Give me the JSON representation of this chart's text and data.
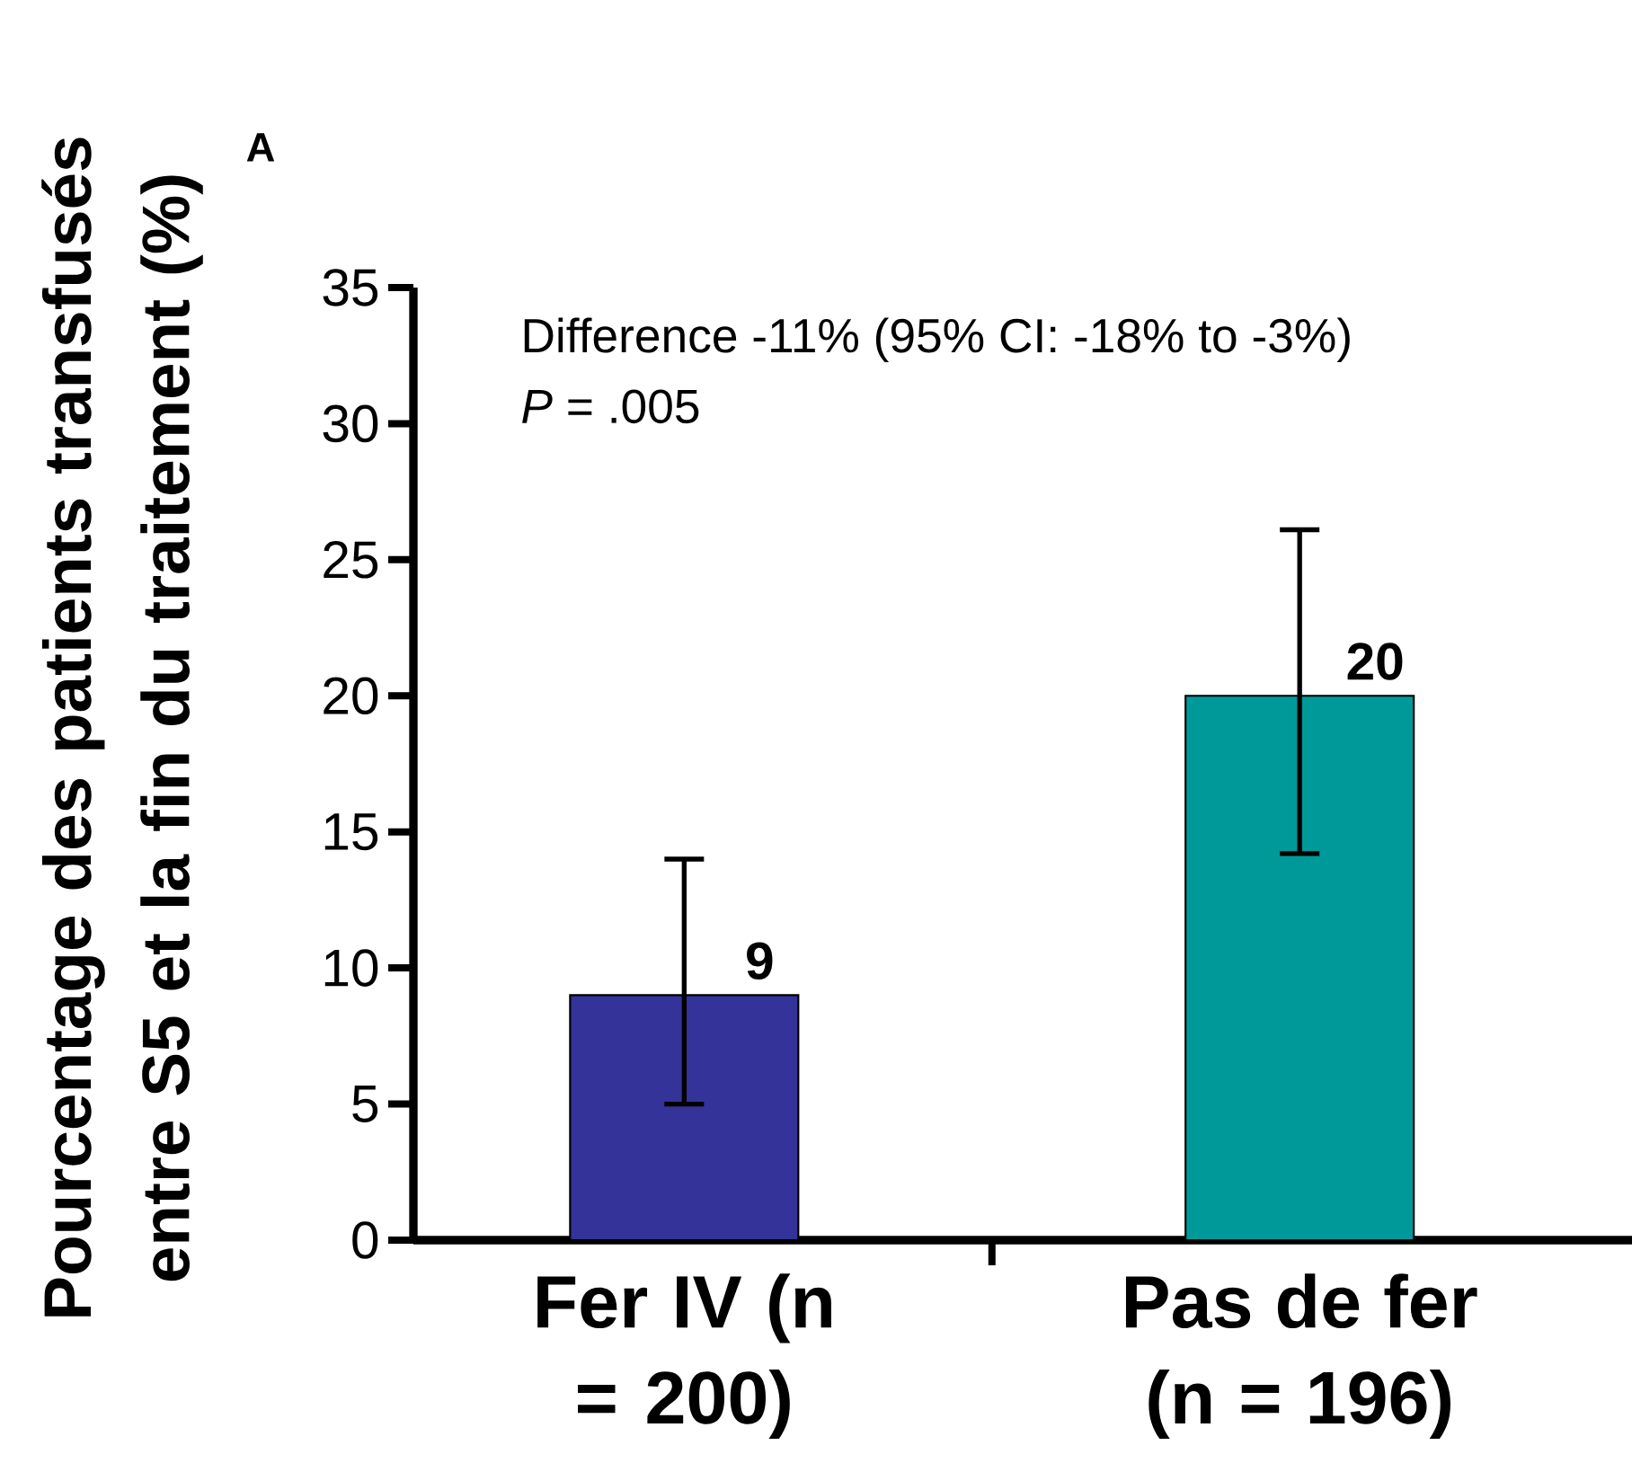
{
  "chart_data": {
    "type": "bar",
    "ylabel": "Pourcentage des patients transfusés entre S5 et la fin du traitement (%)",
    "categories": [
      "Fer IV (n = 200)",
      "Pas de fer (n = 196)"
    ],
    "values": [
      9,
      20
    ],
    "colors": [
      "#333399",
      "#009999"
    ],
    "errors": [
      [
        5,
        14
      ],
      [
        14.2,
        26.1
      ]
    ],
    "data_labels": true,
    "ylim": [
      0,
      35
    ],
    "yticks": [
      0,
      5,
      10,
      15,
      20,
      25,
      30,
      35
    ],
    "annotations": [
      "A",
      "Difference -11% (95% CI: -18% to -3%)",
      "*P* = .005"
    ],
    "grid": false
  }
}
